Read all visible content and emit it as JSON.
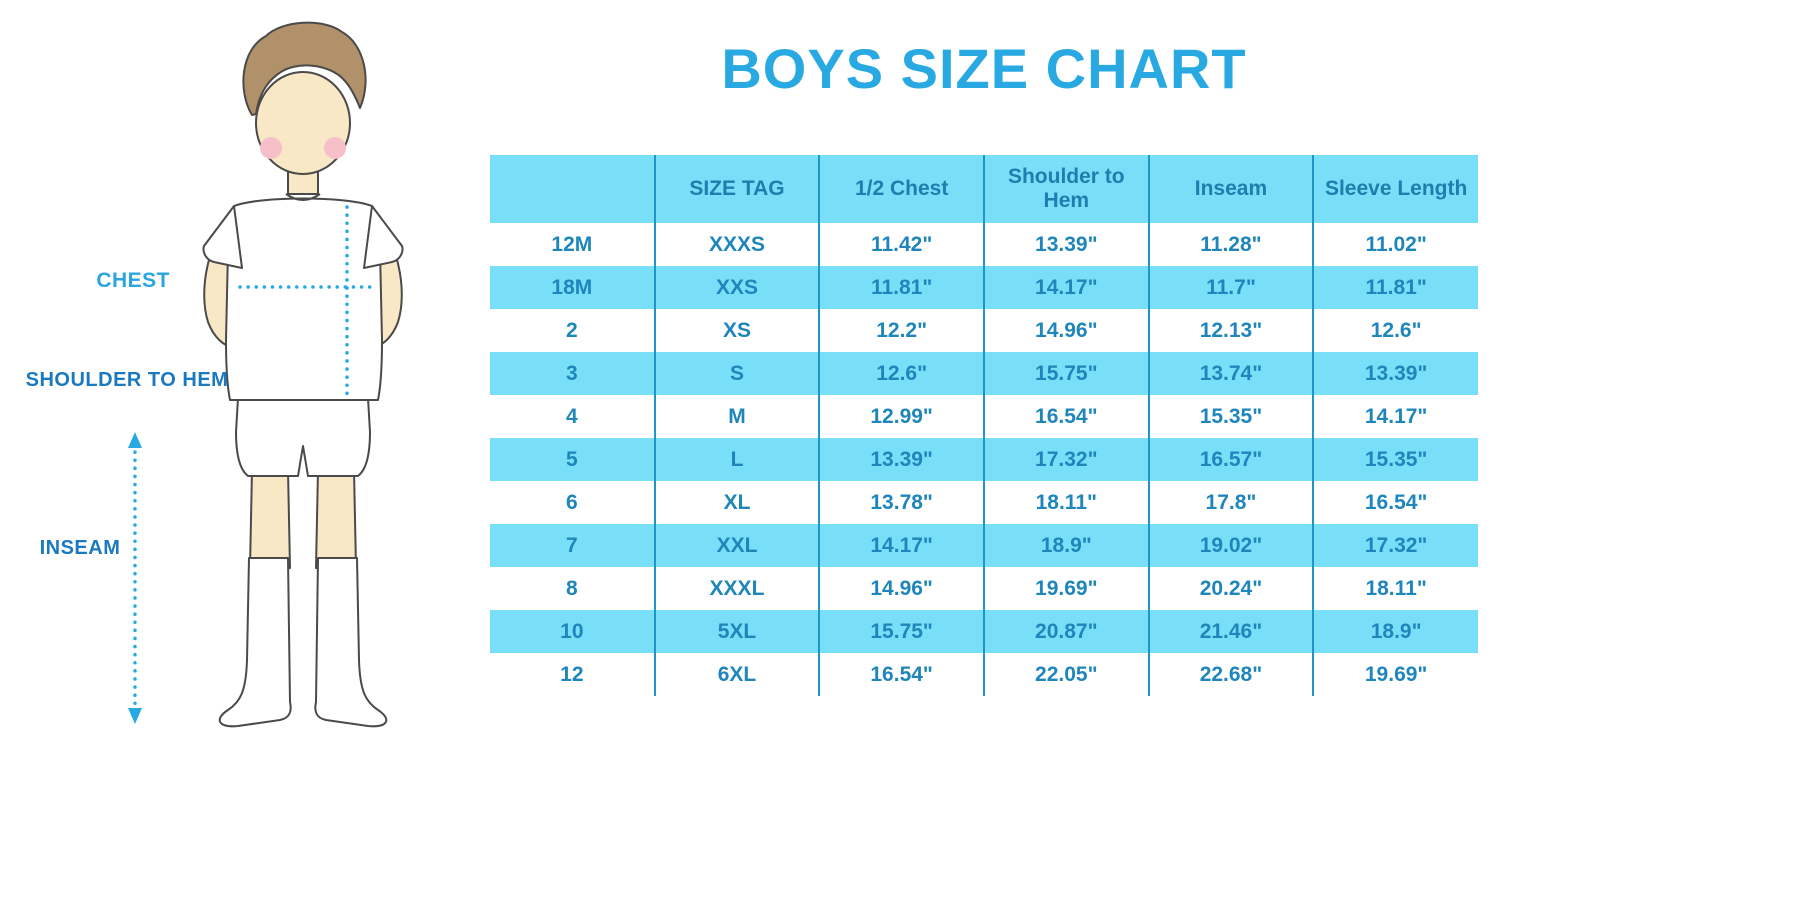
{
  "title": "BOYS SIZE CHART",
  "colors": {
    "title_blue": "#29A9E1",
    "band_blue": "#79DFF8",
    "table_text_blue": "#1E86BB",
    "column_line_blue": "#1E96C8",
    "label_blue": "#1B79C0",
    "dotted_line_blue": "#29A9E1",
    "skin": "#F8E8C6",
    "hair_brown": "#B19169",
    "blush_pink": "#F7BFCA"
  },
  "figure": {
    "description": "boy-illustration",
    "labels": {
      "chest": "CHEST",
      "shoulder_to_hem": "SHOULDER TO HEM",
      "inseam": "INSEAM"
    }
  },
  "chart_data": {
    "type": "table",
    "title": "BOYS SIZE CHART",
    "columns": [
      "",
      "SIZE TAG",
      "1/2 Chest",
      "Shoulder to Hem",
      "Inseam",
      "Sleeve Length"
    ],
    "rows": [
      [
        "12M",
        "XXXS",
        "11.42\"",
        "13.39\"",
        "11.28\"",
        "11.02\""
      ],
      [
        "18M",
        "XXS",
        "11.81\"",
        "14.17\"",
        "11.7\"",
        "11.81\""
      ],
      [
        "2",
        "XS",
        "12.2\"",
        "14.96\"",
        "12.13\"",
        "12.6\""
      ],
      [
        "3",
        "S",
        "12.6\"",
        "15.75\"",
        "13.74\"",
        "13.39\""
      ],
      [
        "4",
        "M",
        "12.99\"",
        "16.54\"",
        "15.35\"",
        "14.17\""
      ],
      [
        "5",
        "L",
        "13.39\"",
        "17.32\"",
        "16.57\"",
        "15.35\""
      ],
      [
        "6",
        "XL",
        "13.78\"",
        "18.11\"",
        "17.8\"",
        "16.54\""
      ],
      [
        "7",
        "XXL",
        "14.17\"",
        "18.9\"",
        "19.02\"",
        "17.32\""
      ],
      [
        "8",
        "XXXL",
        "14.96\"",
        "19.69\"",
        "20.24\"",
        "18.11\""
      ],
      [
        "10",
        "5XL",
        "15.75\"",
        "20.87\"",
        "21.46\"",
        "18.9\""
      ],
      [
        "12",
        "6XL",
        "16.54\"",
        "22.05\"",
        "22.68\"",
        "19.69\""
      ]
    ]
  }
}
